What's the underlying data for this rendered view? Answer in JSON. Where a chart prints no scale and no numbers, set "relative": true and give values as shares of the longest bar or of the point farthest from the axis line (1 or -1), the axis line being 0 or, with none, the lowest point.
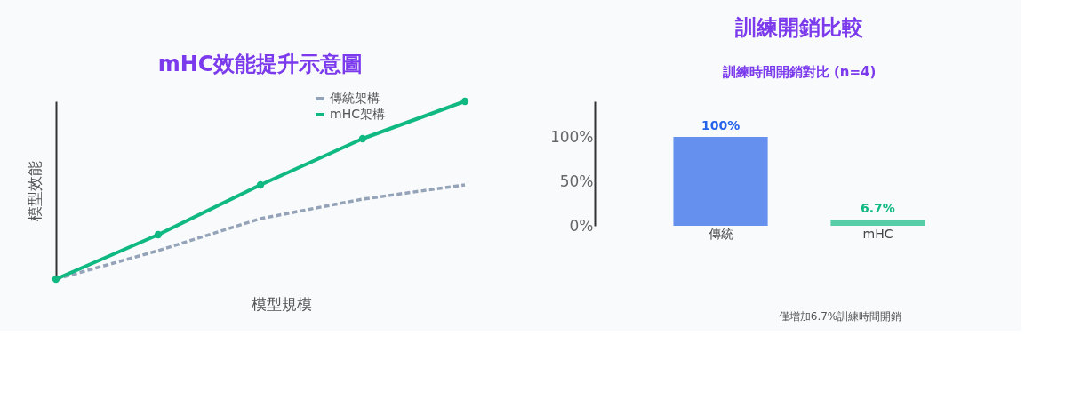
{
  "chart_data": [
    {
      "type": "line",
      "title": "mHC效能提升示意圖",
      "xlabel": "模型規模",
      "ylabel": "模型效能",
      "relative": true,
      "categories": [
        null,
        null,
        null,
        null,
        null
      ],
      "legend": "top right",
      "tick_labels": false,
      "grid": false,
      "series": [
        {
          "name": "傳統架構",
          "color": "#94a3b8",
          "values": [
            0,
            0.16,
            0.34,
            0.45,
            0.53
          ],
          "line_style": "dashed",
          "marker": "none"
        },
        {
          "name": "mHC架構",
          "color": "#10b981",
          "values": [
            0,
            0.25,
            0.53,
            0.79,
            1
          ],
          "line_style": "solid",
          "marker": "circle"
        }
      ]
    },
    {
      "type": "bar",
      "title": "訓練開銷比較",
      "subtitle": "訓練時間開銷對比 (n=4)",
      "categories": [
        "傳統",
        "mHC"
      ],
      "values": [
        100,
        6.7
      ],
      "colors": [
        "#6690ee",
        "#57cda7"
      ],
      "value_labels": [
        "100%",
        "6.7%"
      ],
      "ylim": [
        0,
        140
      ],
      "yticks": [
        {
          "value": 0,
          "label": "0%"
        },
        {
          "value": 50,
          "label": "50%"
        },
        {
          "value": 100,
          "label": "100%"
        }
      ],
      "grid": false,
      "annotations": [
        "僅增加6.7%訓練時間開銷"
      ]
    }
  ]
}
